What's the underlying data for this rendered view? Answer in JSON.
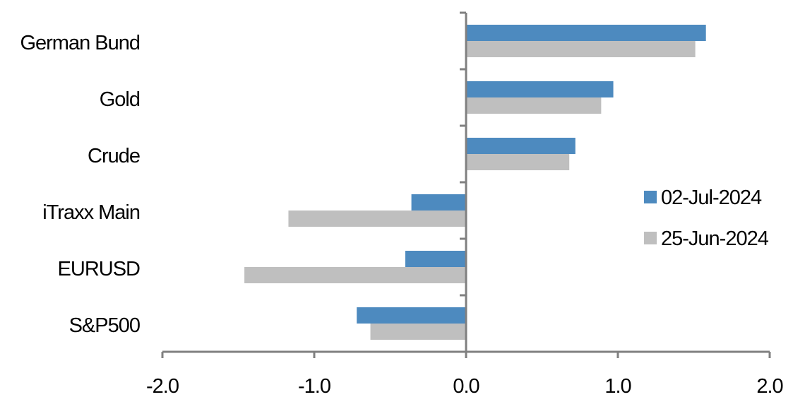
{
  "chart_data": {
    "type": "bar",
    "orientation": "horizontal",
    "categories": [
      "German Bund",
      "Gold",
      "Crude",
      "iTraxx Main",
      "EURUSD",
      "S&P500"
    ],
    "series": [
      {
        "name": "02-Jul-2024",
        "color": "#4d8abf",
        "values": [
          1.58,
          0.97,
          0.72,
          -0.36,
          -0.4,
          -0.72
        ]
      },
      {
        "name": "25-Jun-2024",
        "color": "#bfbfbf",
        "values": [
          1.51,
          0.89,
          0.68,
          -1.17,
          -1.46,
          -0.63
        ]
      }
    ],
    "xlim": [
      -2.0,
      2.0
    ],
    "xticks": [
      "-2.0",
      "-1.0",
      "0.0",
      "1.0",
      "2.0"
    ],
    "grid": false,
    "legend_position": "right"
  }
}
